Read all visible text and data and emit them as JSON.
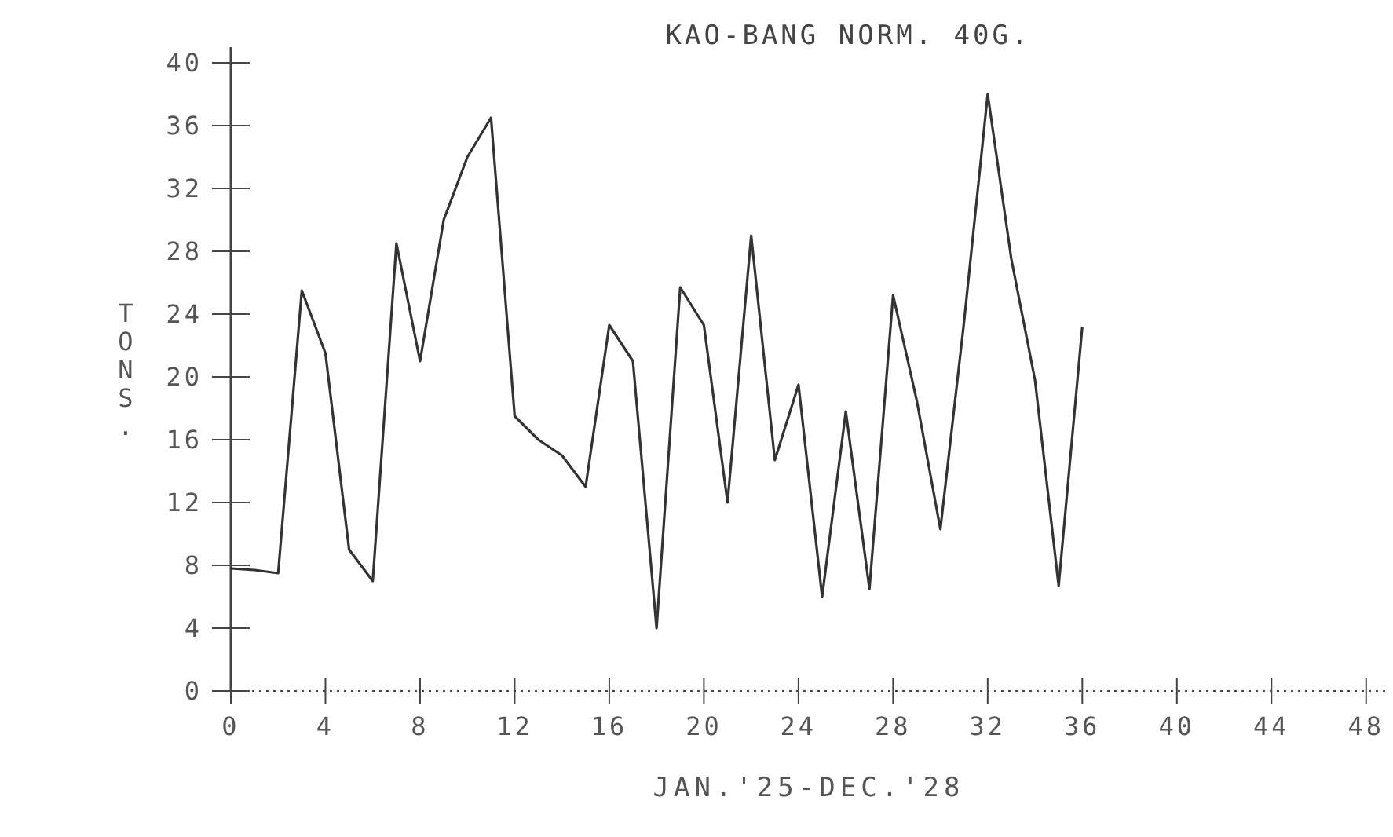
{
  "chart_data": {
    "type": "line",
    "title": "KAO-BANG NORM. 40G.",
    "xlabel": "JAN.'25-DEC.'28",
    "ylabel": "TONS.",
    "x": [
      0,
      1,
      2,
      3,
      4,
      5,
      6,
      7,
      8,
      9,
      10,
      11,
      12,
      13,
      14,
      15,
      16,
      17,
      18,
      19,
      20,
      21,
      22,
      23,
      24,
      25,
      26,
      27,
      28,
      29,
      30,
      31,
      32,
      33,
      34,
      35,
      36
    ],
    "series": [
      {
        "color": "#333333",
        "values": [
          7.8,
          7.7,
          7.5,
          25.5,
          21.5,
          9,
          7,
          28.5,
          21,
          30,
          34,
          36.5,
          17.5,
          16,
          15,
          13,
          23.3,
          21,
          4,
          25.7,
          23.3,
          12,
          29,
          14.7,
          19.5,
          6,
          17.8,
          6.5,
          25.2,
          18.5,
          10.3,
          23.5,
          38,
          27.5,
          19.8,
          6.7,
          23.2
        ]
      }
    ],
    "xlim": [
      0,
      49
    ],
    "xticks": [
      0,
      4,
      8,
      12,
      16,
      20,
      24,
      28,
      32,
      36,
      40,
      44,
      48
    ],
    "ylim": [
      0,
      41
    ],
    "yticks": [
      0,
      4,
      8,
      12,
      16,
      20,
      24,
      28,
      32,
      36,
      40
    ],
    "grid": false,
    "marker": "none",
    "line_style": "solid"
  }
}
